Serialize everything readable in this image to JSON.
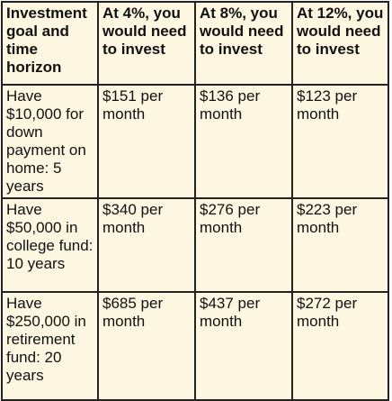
{
  "table": {
    "headers": [
      "Investment goal and time horizon",
      "At 4%, you would need to invest",
      "At 8%, you would need to invest",
      "At 12%, you would need to invest"
    ],
    "rows": [
      {
        "goal": "Have $10,000 for down payment on home: 5 years",
        "at_4": "$151 per month",
        "at_8": "$136 per month",
        "at_12": "$123 per month"
      },
      {
        "goal": "Have $50,000 in college fund: 10 years",
        "at_4": "$340 per month",
        "at_8": "$276 per month",
        "at_12": "$223 per month"
      },
      {
        "goal": "Have $250,000 in retirement fund: 20 years",
        "at_4": "$685 per month",
        "at_8": "$437 per month",
        "at_12": "$272 per month"
      }
    ]
  }
}
